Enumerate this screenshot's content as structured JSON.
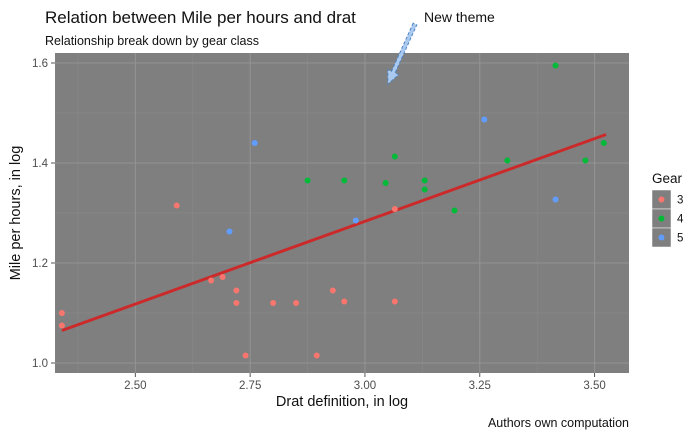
{
  "chart_data": {
    "type": "scatter",
    "title": "Relation between Mile per hours and drat",
    "subtitle": "Relationship break down by gear class",
    "caption": "Authors own computation",
    "xlabel": "Drat definition, in log",
    "ylabel": "Mile per hours, in log",
    "xlim": [
      2.325,
      3.575
    ],
    "ylim": [
      0.98,
      1.62
    ],
    "x_ticks": [
      2.5,
      2.75,
      3.0,
      3.25,
      3.5
    ],
    "x_tick_labels": [
      "2.50",
      "2.75",
      "3.00",
      "3.25",
      "3.50"
    ],
    "y_ticks": [
      1.0,
      1.2,
      1.4,
      1.6
    ],
    "y_tick_labels": [
      "1.0",
      "1.2",
      "1.4",
      "1.6"
    ],
    "grid": true,
    "panel_color": "#7f7f7f",
    "legend": {
      "title": "Gear",
      "placement": "right"
    },
    "annotation": {
      "text": "New theme",
      "target": [
        3.05,
        1.57
      ]
    },
    "series": [
      {
        "name": "3",
        "color": "#F8766D",
        "points": [
          [
            2.34,
            1.1
          ],
          [
            2.34,
            1.075
          ],
          [
            2.59,
            1.315
          ],
          [
            2.665,
            1.165
          ],
          [
            2.69,
            1.172
          ],
          [
            2.72,
            1.145
          ],
          [
            2.72,
            1.12
          ],
          [
            2.74,
            1.015
          ],
          [
            2.8,
            1.12
          ],
          [
            2.85,
            1.12
          ],
          [
            2.895,
            1.015
          ],
          [
            2.93,
            1.145
          ],
          [
            2.955,
            1.123
          ],
          [
            3.065,
            1.123
          ],
          [
            3.065,
            1.308
          ]
        ]
      },
      {
        "name": "4",
        "color": "#00BA38",
        "points": [
          [
            2.875,
            1.365
          ],
          [
            2.955,
            1.365
          ],
          [
            3.045,
            1.36
          ],
          [
            3.065,
            1.413
          ],
          [
            3.13,
            1.365
          ],
          [
            3.13,
            1.347
          ],
          [
            3.195,
            1.305
          ],
          [
            3.31,
            1.405
          ],
          [
            3.415,
            1.595
          ],
          [
            3.48,
            1.405
          ],
          [
            3.52,
            1.44
          ]
        ]
      },
      {
        "name": "5",
        "color": "#619CFF",
        "points": [
          [
            2.705,
            1.263
          ],
          [
            2.76,
            1.44
          ],
          [
            2.98,
            1.285
          ],
          [
            3.26,
            1.487
          ],
          [
            3.415,
            1.327
          ]
        ]
      }
    ],
    "trend_line": {
      "color": "#cc2a2a",
      "from": [
        2.34,
        1.065
      ],
      "to": [
        3.525,
        1.457
      ]
    }
  }
}
